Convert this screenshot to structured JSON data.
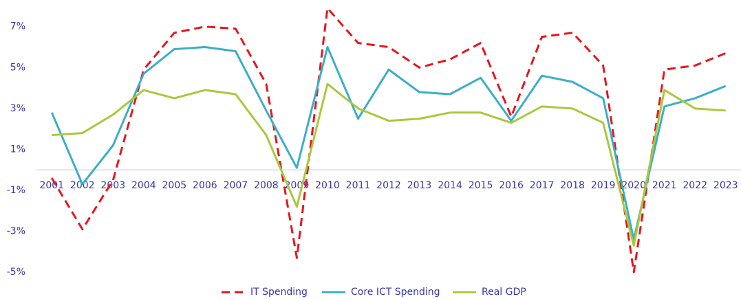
{
  "chart_data": {
    "type": "line",
    "categories": [
      "2001",
      "2002",
      "2003",
      "2004",
      "2005",
      "2006",
      "2007",
      "2008",
      "2009",
      "2010",
      "2011",
      "2012",
      "2013",
      "2014",
      "2015",
      "2016",
      "2017",
      "2018",
      "2019",
      "2020",
      "2021",
      "2022",
      "2023"
    ],
    "series": [
      {
        "name": "IT Spending",
        "color": "#e8141c",
        "dashed": true,
        "values": [
          -0.4,
          -2.9,
          -0.5,
          4.9,
          6.7,
          7.0,
          6.9,
          4.2,
          -4.3,
          7.9,
          6.2,
          6.0,
          5.0,
          5.4,
          6.2,
          2.6,
          6.5,
          6.7,
          5.1,
          -5.0,
          4.9,
          5.1,
          5.7
        ]
      },
      {
        "name": "Core ICT Spending",
        "color": "#3aafc7",
        "values": [
          2.8,
          -0.7,
          1.2,
          4.7,
          5.9,
          6.0,
          5.8,
          2.9,
          0.1,
          6.0,
          2.5,
          4.9,
          3.8,
          3.7,
          4.5,
          2.4,
          4.6,
          4.3,
          3.5,
          -3.4,
          3.1,
          3.5,
          4.1
        ]
      },
      {
        "name": "Real GDP",
        "color": "#a8c93c",
        "values": [
          1.7,
          1.8,
          2.7,
          3.9,
          3.5,
          3.9,
          3.7,
          1.7,
          -1.8,
          4.2,
          3.0,
          2.4,
          2.5,
          2.8,
          2.8,
          2.3,
          3.1,
          3.0,
          2.3,
          -3.7,
          3.9,
          3.0,
          2.9
        ]
      }
    ],
    "ylim": [
      -5.2,
      8.2
    ],
    "yticks": [
      {
        "value": -5,
        "label": "-5%"
      },
      {
        "value": -3,
        "label": "-3%"
      },
      {
        "value": -1,
        "label": "-1%"
      },
      {
        "value": 1,
        "label": "1%"
      },
      {
        "value": 3,
        "label": "3%"
      },
      {
        "value": 5,
        "label": "5%"
      },
      {
        "value": 7,
        "label": "7%"
      }
    ],
    "legend": "bottom"
  }
}
